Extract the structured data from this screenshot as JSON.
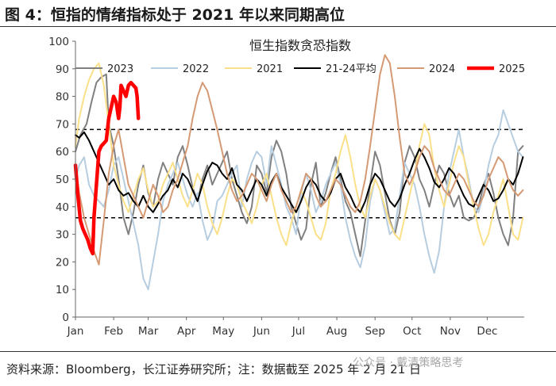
{
  "figure": {
    "title": "图 4：恒指的情绪指标处于 2021 年以来同期高位",
    "source": "资料来源：Bloomberg，长江证券研究所；注：数据截至 2025 年 2 月 21 日",
    "watermark": "公众号 · 戴清策略思考"
  },
  "chart_data": {
    "type": "line",
    "title": "恒生指数贪恐指数",
    "xlabel": "",
    "ylabel": "",
    "ylim": [
      0,
      100
    ],
    "yticks": [
      0,
      10,
      20,
      30,
      40,
      50,
      60,
      70,
      80,
      90,
      100
    ],
    "months": [
      "Jan",
      "Feb",
      "Mar",
      "Apr",
      "May",
      "Jun",
      "Jul",
      "Aug",
      "Sep",
      "Oct",
      "Nov",
      "Dec"
    ],
    "reference_lines": [
      68,
      36
    ],
    "series": [
      {
        "name": "2023",
        "color": "#808080",
        "width": 2,
        "x": [
          1,
          5,
          10,
          14,
          18,
          22,
          26,
          28,
          32,
          36,
          40,
          44,
          48,
          52,
          56,
          60,
          64,
          68,
          72,
          76,
          80,
          84,
          88,
          92,
          96,
          100,
          104,
          108,
          112,
          116,
          120,
          124,
          128,
          132,
          136,
          140,
          144,
          148,
          152,
          156,
          160,
          164,
          168,
          172,
          176,
          180,
          184,
          188,
          192,
          196,
          200,
          204,
          208,
          212,
          216,
          220,
          224,
          228,
          232,
          236,
          240,
          244,
          248,
          252,
          256,
          260,
          264,
          268,
          272,
          276,
          280,
          284,
          288,
          292,
          296,
          300,
          304,
          308,
          312,
          316,
          320,
          324,
          328,
          332,
          336,
          340,
          344,
          348,
          352,
          356,
          360,
          364
        ],
        "values": [
          60,
          66,
          70,
          78,
          85,
          87,
          88,
          70,
          62,
          50,
          36,
          30,
          38,
          48,
          55,
          45,
          40,
          50,
          56,
          52,
          48,
          58,
          62,
          55,
          47,
          42,
          50,
          55,
          48,
          52,
          56,
          60,
          50,
          44,
          38,
          34,
          40,
          55,
          52,
          45,
          58,
          64,
          60,
          52,
          40,
          34,
          28,
          32,
          48,
          56,
          40,
          45,
          52,
          58,
          50,
          42,
          38,
          30,
          22,
          35,
          48,
          60,
          55,
          45,
          35,
          30,
          38,
          56,
          62,
          58,
          50,
          46,
          40,
          48,
          55,
          52,
          45,
          40,
          44,
          36,
          35,
          36,
          40,
          48,
          52,
          45,
          36,
          30,
          26,
          36,
          60,
          62
        ]
      },
      {
        "name": "2022",
        "color": "#b7cde0",
        "width": 2,
        "x": [
          1,
          4,
          8,
          12,
          16,
          20,
          24,
          28,
          32,
          36,
          40,
          44,
          48,
          52,
          56,
          60,
          64,
          68,
          72,
          76,
          80,
          84,
          88,
          92,
          96,
          100,
          104,
          108,
          112,
          116,
          120,
          124,
          128,
          132,
          136,
          140,
          144,
          148,
          152,
          156,
          160,
          164,
          168,
          172,
          176,
          180,
          184,
          188,
          192,
          196,
          200,
          204,
          208,
          212,
          216,
          220,
          224,
          228,
          232,
          236,
          240,
          244,
          248,
          252,
          256,
          260,
          264,
          268,
          272,
          276,
          280,
          284,
          288,
          292,
          296,
          300,
          304,
          308,
          312,
          316,
          320,
          324,
          328,
          332,
          336,
          340,
          344,
          348,
          352,
          356,
          360,
          364
        ],
        "values": [
          50,
          55,
          58,
          48,
          44,
          42,
          40,
          46,
          55,
          58,
          50,
          42,
          34,
          26,
          14,
          10,
          20,
          30,
          42,
          48,
          52,
          56,
          50,
          44,
          40,
          45,
          35,
          28,
          32,
          42,
          44,
          48,
          52,
          55,
          40,
          50,
          56,
          60,
          58,
          48,
          62,
          55,
          48,
          40,
          36,
          30,
          45,
          52,
          46,
          38,
          42,
          48,
          52,
          56,
          48,
          36,
          28,
          22,
          18,
          26,
          42,
          50,
          46,
          38,
          30,
          32,
          44,
          56,
          52,
          48,
          40,
          30,
          22,
          16,
          24,
          40,
          52,
          60,
          68,
          58,
          50,
          40,
          38,
          45,
          55,
          62,
          66,
          75,
          70,
          65,
          60,
          58
        ]
      },
      {
        "name": "2021",
        "color": "#fbe08a",
        "width": 2,
        "x": [
          1,
          4,
          8,
          12,
          16,
          20,
          24,
          28,
          32,
          36,
          40,
          44,
          48,
          52,
          56,
          60,
          64,
          68,
          72,
          76,
          80,
          84,
          88,
          92,
          96,
          100,
          104,
          108,
          112,
          116,
          120,
          124,
          128,
          132,
          136,
          140,
          144,
          148,
          152,
          156,
          160,
          164,
          168,
          172,
          176,
          180,
          184,
          188,
          192,
          196,
          200,
          204,
          208,
          212,
          216,
          220,
          224,
          228,
          232,
          236,
          240,
          244,
          248,
          252,
          256,
          260,
          264,
          268,
          272,
          276,
          280,
          284,
          288,
          292,
          296,
          300,
          304,
          308,
          312,
          316,
          320,
          324,
          328,
          332,
          336,
          340,
          344,
          348,
          352,
          356,
          360,
          364
        ],
        "values": [
          62,
          72,
          80,
          86,
          90,
          92,
          84,
          70,
          55,
          48,
          42,
          38,
          44,
          50,
          54,
          46,
          40,
          42,
          48,
          52,
          56,
          50,
          44,
          40,
          46,
          52,
          48,
          40,
          34,
          30,
          36,
          44,
          50,
          48,
          42,
          38,
          34,
          40,
          48,
          52,
          44,
          36,
          30,
          26,
          34,
          40,
          46,
          42,
          36,
          30,
          28,
          34,
          46,
          52,
          60,
          66,
          58,
          48,
          40,
          36,
          44,
          50,
          46,
          40,
          34,
          30,
          28,
          36,
          44,
          52,
          62,
          70,
          66,
          54,
          46,
          40,
          48,
          56,
          62,
          58,
          48,
          40,
          32,
          26,
          30,
          38,
          44,
          50,
          40,
          30,
          28,
          36
        ]
      },
      {
        "name": "21-24平均",
        "color": "#000000",
        "width": 2,
        "x": [
          1,
          4,
          8,
          12,
          16,
          20,
          24,
          28,
          32,
          36,
          40,
          44,
          48,
          52,
          56,
          60,
          64,
          68,
          72,
          76,
          80,
          84,
          88,
          92,
          96,
          100,
          104,
          108,
          112,
          116,
          120,
          124,
          128,
          132,
          136,
          140,
          144,
          148,
          152,
          156,
          160,
          164,
          168,
          172,
          176,
          180,
          184,
          188,
          192,
          196,
          200,
          204,
          208,
          212,
          216,
          220,
          224,
          228,
          232,
          236,
          240,
          244,
          248,
          252,
          256,
          260,
          264,
          268,
          272,
          276,
          280,
          284,
          288,
          292,
          296,
          300,
          304,
          308,
          312,
          316,
          320,
          324,
          328,
          332,
          336,
          340,
          344,
          348,
          352,
          356,
          360,
          364
        ],
        "values": [
          66,
          65,
          67,
          64,
          60,
          56,
          52,
          48,
          50,
          46,
          44,
          45,
          42,
          40,
          44,
          40,
          38,
          41,
          44,
          46,
          50,
          47,
          52,
          50,
          46,
          42,
          48,
          53,
          56,
          55,
          52,
          50,
          54,
          48,
          46,
          42,
          46,
          50,
          48,
          44,
          49,
          52,
          47,
          44,
          41,
          38,
          42,
          47,
          50,
          48,
          44,
          42,
          45,
          50,
          52,
          47,
          44,
          40,
          38,
          42,
          48,
          52,
          50,
          46,
          42,
          40,
          43,
          48,
          52,
          57,
          61,
          58,
          54,
          49,
          47,
          50,
          54,
          52,
          48,
          44,
          41,
          40,
          44,
          48,
          46,
          42,
          43,
          46,
          50,
          48,
          52,
          58
        ]
      },
      {
        "name": "2024",
        "color": "#d59a74",
        "width": 2,
        "x": [
          1,
          4,
          8,
          12,
          16,
          20,
          24,
          28,
          32,
          36,
          40,
          44,
          48,
          52,
          56,
          60,
          64,
          68,
          72,
          76,
          80,
          84,
          88,
          92,
          96,
          100,
          104,
          108,
          112,
          116,
          120,
          124,
          128,
          132,
          136,
          140,
          144,
          148,
          152,
          156,
          160,
          164,
          168,
          172,
          176,
          180,
          184,
          188,
          192,
          196,
          200,
          204,
          208,
          212,
          216,
          220,
          224,
          228,
          232,
          236,
          240,
          244,
          248,
          252,
          256,
          260,
          264,
          268,
          272,
          276,
          280,
          284,
          288,
          292,
          296,
          300,
          304,
          308,
          312,
          316,
          320,
          324,
          328,
          332,
          336,
          340,
          344,
          348,
          352,
          356,
          360,
          364
        ],
        "values": [
          55,
          45,
          36,
          30,
          24,
          19,
          35,
          52,
          62,
          68,
          58,
          48,
          44,
          40,
          36,
          42,
          48,
          44,
          38,
          40,
          46,
          50,
          56,
          62,
          72,
          80,
          85,
          82,
          75,
          68,
          60,
          52,
          46,
          42,
          44,
          48,
          52,
          50,
          46,
          42,
          48,
          52,
          46,
          42,
          38,
          40,
          46,
          52,
          50,
          44,
          40,
          42,
          46,
          50,
          48,
          44,
          40,
          38,
          42,
          50,
          62,
          75,
          88,
          95,
          92,
          80,
          65,
          52,
          48,
          52,
          58,
          62,
          60,
          54,
          50,
          46,
          44,
          48,
          52,
          50,
          46,
          42,
          40,
          44,
          50,
          54,
          58,
          56,
          50,
          46,
          44,
          46
        ]
      },
      {
        "name": "2025",
        "color": "#ff0000",
        "width": 4.5,
        "x": [
          1,
          3,
          5,
          7,
          9,
          11,
          13,
          15,
          16,
          18,
          20,
          22,
          24,
          26,
          28,
          30,
          32,
          34,
          36,
          37,
          38,
          40,
          42,
          44,
          46,
          48,
          50,
          51,
          52
        ],
        "values": [
          55,
          44,
          35,
          32,
          30,
          28,
          25,
          23,
          36,
          48,
          60,
          62,
          63,
          64,
          72,
          76,
          80,
          78,
          72,
          76,
          84,
          82,
          80,
          84,
          85,
          84,
          83,
          80,
          72
        ]
      }
    ]
  }
}
